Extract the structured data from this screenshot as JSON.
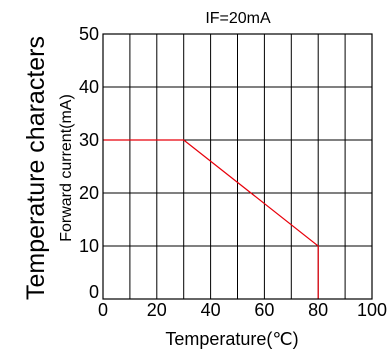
{
  "chart_data": {
    "type": "line",
    "title": "IF=20mA",
    "side_title": "Temperature characters",
    "xlabel": "Temperature(℃)",
    "ylabel": "Forward current(mA)",
    "xlim": [
      0,
      100
    ],
    "ylim": [
      0,
      50
    ],
    "x_ticks": [
      "0",
      "20",
      "40",
      "60",
      "80",
      "100"
    ],
    "y_ticks": [
      "0",
      "10",
      "20",
      "30",
      "40",
      "50"
    ],
    "grid": true,
    "series": [
      {
        "x": [
          0,
          30,
          80,
          80
        ],
        "y": [
          30,
          30,
          10,
          0
        ],
        "color": "#e8000b"
      }
    ]
  }
}
